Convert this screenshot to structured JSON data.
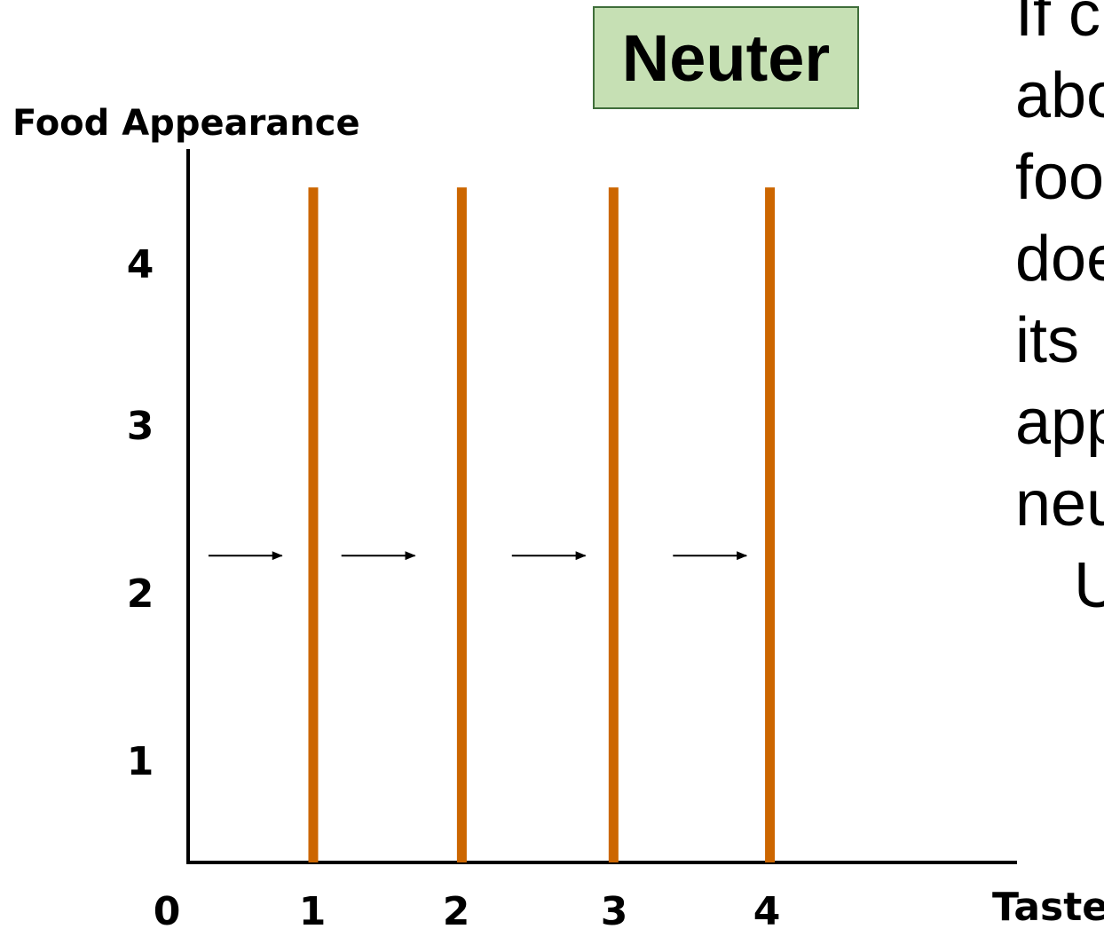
{
  "badge": {
    "label": "Neuter"
  },
  "side_text": [
    "If c",
    "abo",
    "foo",
    "doe",
    "its",
    "app",
    "neu",
    "U"
  ],
  "chart_data": {
    "type": "line",
    "title": "",
    "xlabel": "Taste",
    "ylabel": "Food Appearance",
    "origin_label": "0",
    "xlim": [
      0,
      5.3
    ],
    "ylim": [
      0,
      4.65
    ],
    "x_ticks": [
      1,
      2,
      3,
      4
    ],
    "x_tick_labels": [
      "1",
      "2",
      "3",
      "4"
    ],
    "y_ticks": [
      1,
      2,
      3,
      4
    ],
    "y_tick_labels": [
      "1",
      "2",
      "3",
      "4"
    ],
    "series": [
      {
        "x": [
          0.8,
          0.8
        ],
        "y": [
          0,
          4.4
        ]
      },
      {
        "x": [
          1.75,
          1.75
        ],
        "y": [
          0,
          4.4
        ]
      },
      {
        "x": [
          2.72,
          2.72
        ],
        "y": [
          0,
          4.4
        ]
      },
      {
        "x": [
          3.72,
          3.72
        ],
        "y": [
          0,
          4.4
        ]
      }
    ],
    "arrows": [
      {
        "from": [
          0.13,
          2.0
        ],
        "to": [
          0.6,
          2.0
        ]
      },
      {
        "from": [
          0.98,
          2.0
        ],
        "to": [
          1.45,
          2.0
        ]
      },
      {
        "from": [
          2.07,
          2.0
        ],
        "to": [
          2.54,
          2.0
        ]
      },
      {
        "from": [
          3.1,
          2.0
        ],
        "to": [
          3.57,
          2.0
        ]
      }
    ],
    "line_color": "#cc6600",
    "grid": false,
    "legend": "none"
  }
}
